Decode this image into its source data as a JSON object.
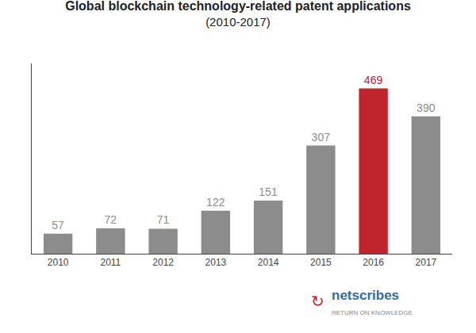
{
  "chart_data": {
    "type": "bar",
    "title": "Global blockchain technology-related patent applications",
    "subtitle": "(2010-2017)",
    "categories": [
      "2010",
      "2011",
      "2012",
      "2013",
      "2014",
      "2015",
      "2016",
      "2017"
    ],
    "values": [
      57,
      72,
      71,
      122,
      151,
      307,
      469,
      390
    ],
    "colors": [
      "#8c8c8c",
      "#8c8c8c",
      "#8c8c8c",
      "#8c8c8c",
      "#8c8c8c",
      "#8c8c8c",
      "#c0252d",
      "#8c8c8c"
    ],
    "ylim": [
      0,
      540
    ],
    "data_labels": true,
    "tick_labels": "x",
    "grid": false,
    "annotations": [
      {
        "text": "↻",
        "color": "#c0252d"
      },
      {
        "text": "netscribes",
        "color": "#2e6da4"
      },
      {
        "text": "RETURN ON KNOWLEDGE"
      }
    ]
  }
}
